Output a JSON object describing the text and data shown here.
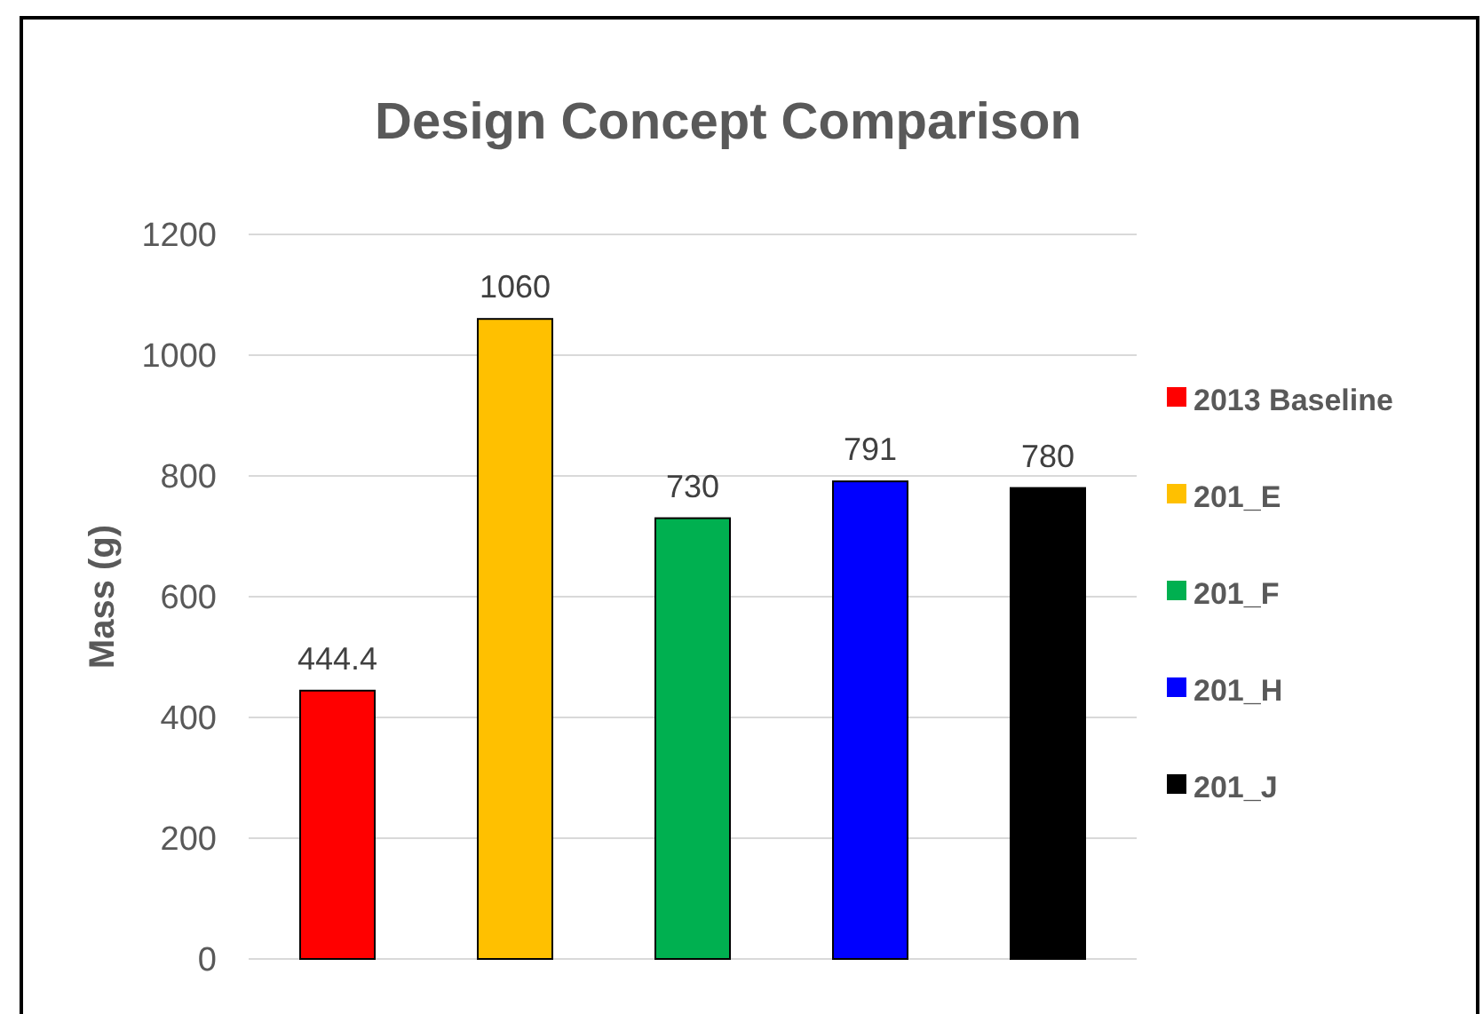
{
  "chart_data": {
    "type": "bar",
    "title": "Design Concept Comparison",
    "ylabel": "Mass (g)",
    "categories": [
      null
    ],
    "series": [
      {
        "name": "2013 Baseline",
        "color": "#ff0000",
        "values": [
          444.4
        ]
      },
      {
        "name": "201_E",
        "color": "#ffc000",
        "values": [
          1060
        ]
      },
      {
        "name": "201_F",
        "color": "#00b050",
        "values": [
          730
        ]
      },
      {
        "name": "201_H",
        "color": "#0000ff",
        "values": [
          791
        ]
      },
      {
        "name": "201_J",
        "color": "#000000",
        "values": [
          780
        ]
      }
    ],
    "ylim": [
      0,
      1200
    ],
    "yticks": [
      0,
      200,
      400,
      600,
      800,
      1000,
      1200
    ],
    "grid": "y",
    "legend": "right",
    "data_labels": true
  }
}
